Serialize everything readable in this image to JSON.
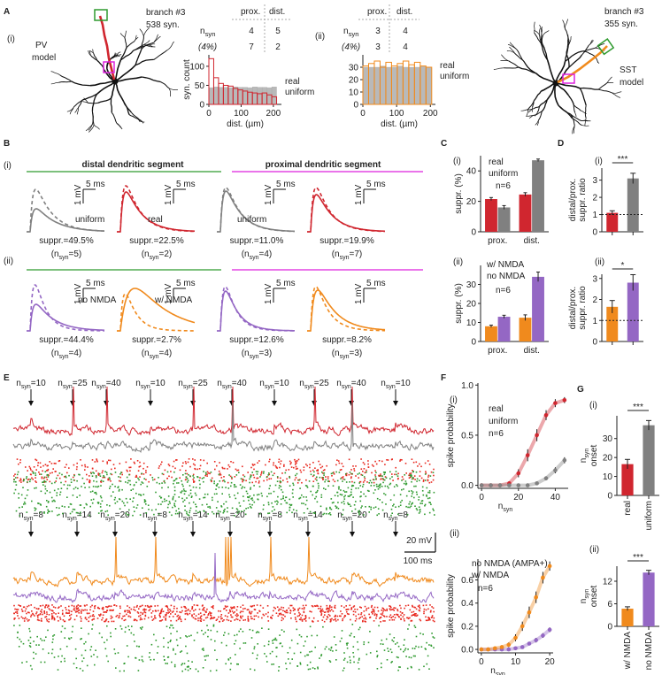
{
  "a": {
    "label": "A",
    "i": {
      "label": "(i)",
      "model": [
        "PV",
        "model"
      ],
      "branch": "branch #3",
      "syn": "538 syn.",
      "table": {
        "prox": "prox.",
        "dist": "dist.",
        "n": "n",
        "sub": "syn",
        "pct": "(4%)",
        "row1": [
          4,
          5
        ],
        "row2": [
          7,
          2
        ]
      }
    },
    "ii": {
      "label": "(ii)",
      "model": [
        "SST",
        "model"
      ],
      "branch": "branch #3",
      "syn": "355 syn.",
      "table": {
        "prox": "prox.",
        "dist": "dist.",
        "n": "n",
        "sub": "syn",
        "pct": "(4%)",
        "row1": [
          3,
          4
        ],
        "row2": [
          3,
          4
        ]
      }
    }
  },
  "b": {
    "label": "B",
    "distal": "distal dendritic segment",
    "proximal": "proximal dendritic segment",
    "rows": [
      {
        "label": "(i)",
        "cells": [
          {
            "trace_label": "uniform",
            "color": "#808080",
            "time": "5 ms",
            "amp": "1 mV",
            "suppr": "suppr.=49.5%",
            "n_pre": "(n",
            "n_sub": "syn",
            "n_post": "=5)"
          },
          {
            "trace_label": "real",
            "color": "#d0262f",
            "time": "5 ms",
            "amp": "1 mV",
            "suppr": "suppr.=22.5%",
            "n_pre": "(n",
            "n_sub": "syn",
            "n_post": "=2)"
          },
          {
            "trace_label": "uniform",
            "color": "#808080",
            "time": "5 ms",
            "amp": "1 mV",
            "suppr": "suppr.=11.0%",
            "n_pre": "(n",
            "n_sub": "syn",
            "n_post": "=4)"
          },
          {
            "color": "#d0262f",
            "time": "5 ms",
            "amp": "1 mV",
            "suppr": "suppr.=19.9%",
            "n_pre": "(n",
            "n_sub": "syn",
            "n_post": "=7)"
          }
        ]
      },
      {
        "label": "(ii)",
        "cells": [
          {
            "trace_label": "no NMDA",
            "color": "#9467c4",
            "time": "5 ms",
            "amp": "1 mV",
            "suppr": "suppr.=44.4%",
            "n_pre": "(n",
            "n_sub": "syn",
            "n_post": "=4)"
          },
          {
            "trace_label": "w/ NMDA",
            "color": "#f08a1d",
            "time": "5 ms",
            "amp": "1 mV",
            "suppr": "suppr.=2.7%",
            "n_pre": "(n",
            "n_sub": "syn",
            "n_post": "=4)"
          },
          {
            "color": "#9467c4",
            "time": "5 ms",
            "amp": "1 mV",
            "suppr": "suppr.=12.6%",
            "n_pre": "(n",
            "n_sub": "syn",
            "n_post": "=3)"
          },
          {
            "color": "#f08a1d",
            "time": "5 ms",
            "amp": "1 mV",
            "suppr": "suppr.=8.2%",
            "n_pre": "(n",
            "n_sub": "syn",
            "n_post": "=3)"
          }
        ]
      }
    ]
  },
  "c": {
    "label": "C",
    "sub": [
      "(i)",
      "(ii)"
    ]
  },
  "d": {
    "label": "D",
    "sub": [
      "(i)",
      "(ii)"
    ]
  },
  "e": {
    "label": "E",
    "n": "n",
    "sub": "syn",
    "eq": "=",
    "rows": [
      {
        "arrows": [
          10,
          25,
          40,
          10,
          25,
          40,
          10,
          25,
          40,
          10
        ]
      },
      {
        "arrows": [
          8,
          14,
          20,
          8,
          14,
          20,
          8,
          14,
          20,
          8
        ]
      }
    ],
    "scale_v": "20 mV",
    "scale_t": "100 ms"
  },
  "f": {
    "label": "F",
    "sub": [
      "(i)",
      "(ii)"
    ]
  },
  "g": {
    "label": "G",
    "sub": [
      "(i)",
      "(ii)"
    ]
  },
  "chart_data": [
    {
      "type": "histogram",
      "ylabel": "syn. count",
      "xlabel": "dist. (µm)",
      "bins": [
        0,
        15,
        30,
        45,
        60,
        75,
        90,
        105,
        120,
        135,
        150,
        165,
        180,
        195,
        210
      ],
      "xlim": [
        0,
        225
      ],
      "xticks": [
        0,
        100,
        200
      ],
      "ylim": [
        0,
        130
      ],
      "yticks": [
        0,
        50,
        100
      ],
      "series": [
        {
          "name": "real",
          "color": "#d0262f",
          "filled": false,
          "values": [
            120,
            70,
            55,
            50,
            48,
            42,
            38,
            35,
            32,
            30,
            28,
            30,
            25,
            20
          ]
        },
        {
          "name": "uniform",
          "color": "#a8a8a8",
          "filled": true,
          "values": [
            44,
            46,
            45,
            45,
            44,
            46,
            45,
            45,
            44,
            46,
            45,
            45,
            44,
            46
          ]
        }
      ]
    },
    {
      "type": "histogram",
      "xlabel": "dist. (µm)",
      "bins": [
        0,
        17,
        34,
        51,
        68,
        85,
        102,
        119,
        136,
        153,
        170,
        187,
        204
      ],
      "xlim": [
        0,
        215
      ],
      "xticks": [
        0,
        100,
        200
      ],
      "ylim": [
        0,
        40
      ],
      "yticks": [
        0,
        10,
        20,
        30
      ],
      "series": [
        {
          "name": "real",
          "color": "#f08a1d",
          "filled": false,
          "values": [
            31,
            33,
            35,
            30,
            34,
            31,
            33,
            35,
            32,
            34,
            31,
            30
          ]
        },
        {
          "name": "uniform",
          "color": "#a8a8a8",
          "filled": true,
          "values": [
            30,
            30,
            30,
            31,
            30,
            30,
            31,
            30,
            30,
            30,
            31,
            30
          ]
        }
      ]
    },
    {
      "type": "bar",
      "ylabel": "suppr. (%)",
      "categories": [
        "prox.",
        "dist."
      ],
      "category_colors": [
        "#dd22dd",
        "#2f9a2f"
      ],
      "series": [
        {
          "name": "real",
          "color": "#d0262f",
          "values": [
            21.5,
            24.5
          ],
          "errors": [
            1,
            1.2
          ]
        },
        {
          "name": "uniform",
          "color": "#808080",
          "values": [
            16,
            47
          ],
          "errors": [
            1.2,
            0.8
          ]
        }
      ],
      "ylim": [
        0,
        50
      ],
      "yticks": [
        0,
        20,
        40
      ],
      "annotation": "n=6"
    },
    {
      "type": "bar",
      "ylabel": "suppr. (%)",
      "categories": [
        "prox.",
        "dist."
      ],
      "category_colors": [
        "#dd22dd",
        "#2f9a2f"
      ],
      "series": [
        {
          "name": "w/ NMDA",
          "color": "#f08a1d",
          "values": [
            8,
            12.5
          ],
          "errors": [
            0.6,
            1.5
          ]
        },
        {
          "name": "no NMDA",
          "color": "#9467c4",
          "values": [
            13,
            34
          ],
          "errors": [
            0.8,
            2.5
          ]
        }
      ],
      "ylim": [
        0,
        40
      ],
      "yticks": [
        0,
        10,
        20,
        30
      ],
      "annotation": "n=6"
    },
    {
      "type": "bar",
      "ylabel": [
        "distal/prox.",
        "suppr. ratio"
      ],
      "values": [
        1.1,
        3.1
      ],
      "errors": [
        0.12,
        0.3
      ],
      "colors": [
        "#d0262f",
        "#808080"
      ],
      "ylim": [
        0,
        3.7
      ],
      "yticks": [
        0,
        1,
        2,
        3
      ],
      "reference_line": 1,
      "annotation": "***"
    },
    {
      "type": "bar",
      "ylabel": [
        "distal/prox.",
        "suppr. ratio"
      ],
      "values": [
        1.65,
        2.8
      ],
      "errors": [
        0.3,
        0.38
      ],
      "colors": [
        "#f08a1d",
        "#9467c4"
      ],
      "ylim": [
        0,
        3.2
      ],
      "yticks": [
        0,
        1,
        2,
        3
      ],
      "reference_line": 1,
      "annotation": "*"
    },
    {
      "type": "line",
      "xlabel": "n",
      "xlabel_sub": "syn",
      "ylabel": "spike probability",
      "x": [
        0,
        5,
        10,
        15,
        20,
        25,
        30,
        35,
        40,
        45
      ],
      "xlim": [
        -2,
        47
      ],
      "xticks": [
        0,
        20,
        40
      ],
      "ylim": [
        -0.03,
        1.02
      ],
      "yticks": [
        {
          "value": 0,
          "label": "0.0"
        },
        {
          "value": 0.5,
          "label": "0.5"
        },
        {
          "value": 1,
          "label": "1.0"
        }
      ],
      "series": [
        {
          "name": "real",
          "color": "#d0262f",
          "values": [
            0,
            0,
            0,
            0.02,
            0.12,
            0.3,
            0.5,
            0.7,
            0.82,
            0.85
          ],
          "errors": [
            0,
            0,
            0,
            0.01,
            0.04,
            0.06,
            0.06,
            0.05,
            0.04,
            0.03
          ]
        },
        {
          "name": "uniform",
          "color": "#808080",
          "values": [
            0,
            0,
            0,
            0,
            0,
            0,
            0.02,
            0.07,
            0.15,
            0.25
          ],
          "errors": [
            0,
            0,
            0,
            0,
            0,
            0,
            0.01,
            0.02,
            0.03,
            0.03
          ]
        }
      ],
      "annotation": "n=6"
    },
    {
      "type": "line",
      "xlabel": "n",
      "xlabel_sub": "syn",
      "ylabel": "spike probability",
      "x": [
        0,
        2,
        4,
        6,
        8,
        10,
        12,
        14,
        16,
        18,
        20
      ],
      "xlim": [
        -1,
        21
      ],
      "xticks": [
        0,
        10,
        20
      ],
      "ylim": [
        -0.03,
        0.78
      ],
      "yticks": [
        {
          "value": 0,
          "label": "0.0"
        },
        {
          "value": 0.2,
          "label": "0.2"
        },
        {
          "value": 0.4,
          "label": "0.4"
        },
        {
          "value": 0.6,
          "label": "0.6"
        }
      ],
      "series": [
        {
          "name": "no NMDA (AMPA+)",
          "color": "#9467c4",
          "values": [
            0,
            0,
            0,
            0,
            0,
            0.01,
            0.02,
            0.05,
            0.08,
            0.12,
            0.17
          ],
          "errors": [
            0,
            0,
            0,
            0,
            0,
            0.01,
            0.01,
            0.01,
            0.02,
            0.02,
            0.02
          ]
        },
        {
          "name": "w/ NMDA",
          "color": "#f08a1d",
          "values": [
            0,
            0,
            0.01,
            0.02,
            0.04,
            0.1,
            0.2,
            0.32,
            0.45,
            0.62,
            0.72
          ],
          "errors": [
            0,
            0,
            0.01,
            0.01,
            0.02,
            0.03,
            0.04,
            0.05,
            0.05,
            0.05,
            0.04
          ]
        }
      ],
      "annotation": "n=6"
    },
    {
      "type": "bar",
      "ylabel": "onset",
      "ylabel2": "n",
      "ylabel2_sub": "syn",
      "categories": [
        "real",
        "uniform"
      ],
      "values": [
        16.5,
        37
      ],
      "errors": [
        2.5,
        2.5
      ],
      "colors": [
        "#d0262f",
        "#808080"
      ],
      "ylim": [
        0,
        42
      ],
      "yticks": [
        0,
        10,
        20,
        30
      ],
      "annotation": "***"
    },
    {
      "type": "bar",
      "ylabel": "onset",
      "ylabel2": "n",
      "ylabel2_sub": "syn",
      "categories": [
        "w/ NMDA",
        "no NMDA"
      ],
      "values": [
        4.7,
        14.3
      ],
      "errors": [
        0.5,
        0.6
      ],
      "colors": [
        "#f08a1d",
        "#9467c4"
      ],
      "ylim": [
        0,
        16
      ],
      "yticks": [
        0,
        6,
        12
      ],
      "annotation": "***"
    }
  ]
}
